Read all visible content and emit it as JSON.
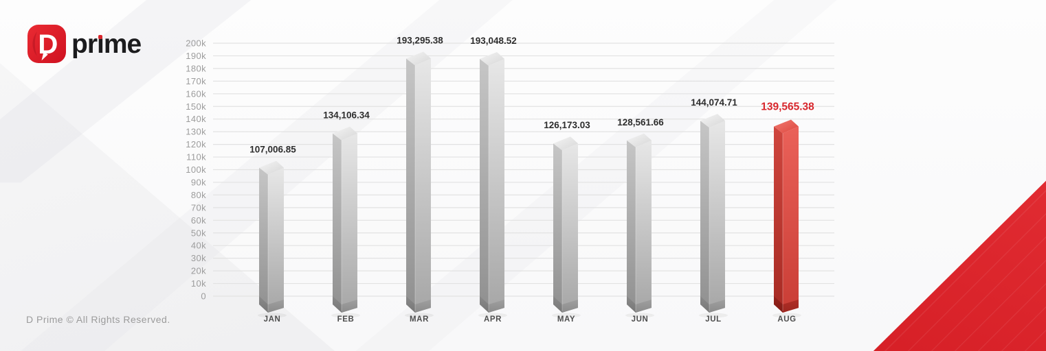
{
  "brand": {
    "mark_letter": "D",
    "wordmark": "prime",
    "wordmark_pre": "pr",
    "wordmark_i": "ı",
    "wordmark_post": "me"
  },
  "footer": {
    "copyright": "D Prime © All Rights Reserved."
  },
  "colors": {
    "accent_red": "#d8262c",
    "value_text": "#2d2d2d",
    "tick_gray": "#9c9c9c",
    "grid_gray": "#e2e2e2",
    "month_gray": "#4d4d4d"
  },
  "chart_data": {
    "type": "bar",
    "title": "",
    "xlabel": "",
    "ylabel": "",
    "categories": [
      "JAN",
      "FEB",
      "MAR",
      "APR",
      "MAY",
      "JUN",
      "JUL",
      "AUG"
    ],
    "values": [
      107006.85,
      134106.34,
      193295.38,
      193048.52,
      126173.03,
      128561.66,
      144074.71,
      139565.38
    ],
    "value_labels": [
      "107,006.85",
      "134,106.34",
      "193,295.38",
      "193,048.52",
      "126,173.03",
      "128,561.66",
      "144,074.71",
      "139,565.38"
    ],
    "highlight_index": 7,
    "highlight_color": "#d8262c",
    "bar_style": "3d-column-gray-gradient",
    "ylim": [
      0,
      200000
    ],
    "y_ticks": [
      "0",
      "10k",
      "20k",
      "30k",
      "40k",
      "50k",
      "60k",
      "70k",
      "80k",
      "90k",
      "100k",
      "110k",
      "120k",
      "130k",
      "140k",
      "150k",
      "160k",
      "170k",
      "180k",
      "190k",
      "200k"
    ],
    "grid": true,
    "legend": false
  }
}
